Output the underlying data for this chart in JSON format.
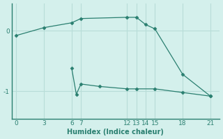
{
  "xlabel": "Humidex (Indice chaleur)",
  "bg_color": "#d4f0ec",
  "line_color": "#2a7f70",
  "spine_color": "#2a7f70",
  "grid_color": "#b8ddd8",
  "line1_x": [
    0,
    3,
    6,
    7,
    12,
    13,
    14,
    15,
    18,
    21
  ],
  "line1_y": [
    -0.08,
    0.05,
    0.13,
    0.2,
    0.22,
    0.22,
    0.1,
    0.03,
    -0.72,
    -1.08
  ],
  "line2_x": [
    6,
    6.5,
    7,
    9,
    12,
    13,
    15,
    18,
    21
  ],
  "line2_y": [
    -0.62,
    -1.05,
    -0.88,
    -0.92,
    -0.96,
    -0.96,
    -0.96,
    -1.02,
    -1.08
  ],
  "xticks": [
    0,
    3,
    6,
    7,
    12,
    13,
    14,
    15,
    18,
    21
  ],
  "yticks": [
    0,
    -1
  ],
  "xlim": [
    -0.5,
    22.0
  ],
  "ylim": [
    -1.45,
    0.45
  ]
}
